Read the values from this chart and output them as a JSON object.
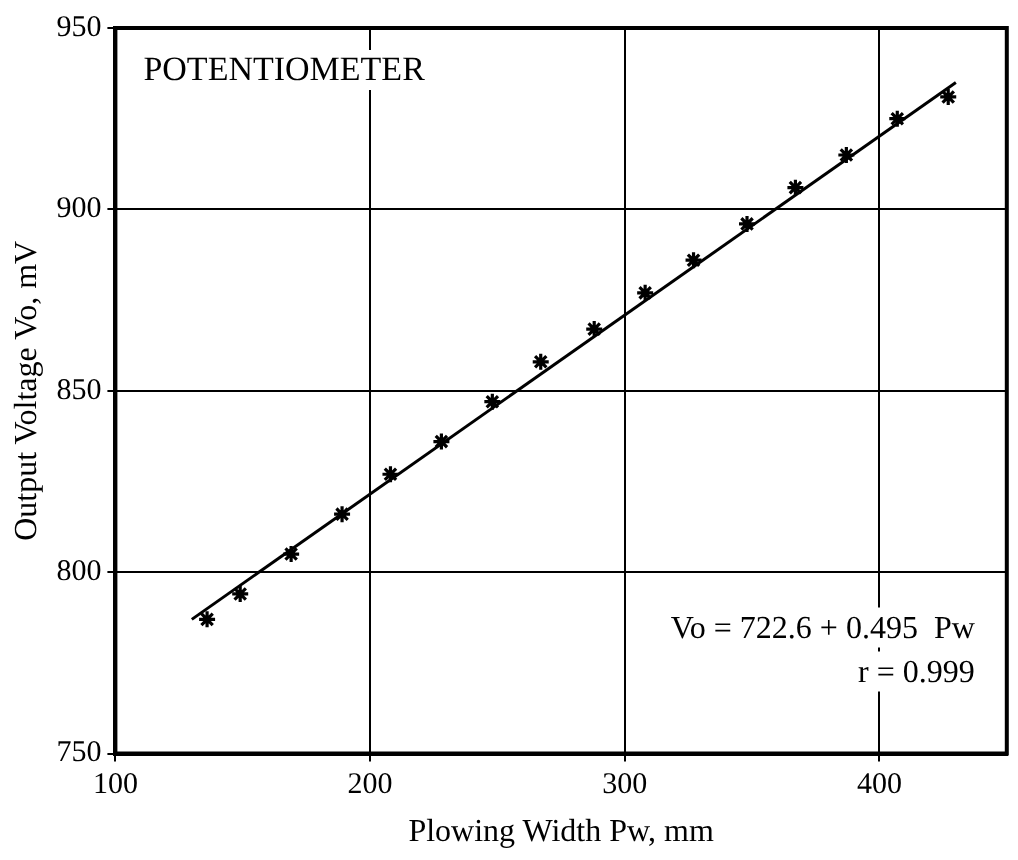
{
  "chart_data": {
    "type": "scatter",
    "xlabel": "Plowing Width Pw, mm",
    "ylabel": "Output Voltage Vo, mV",
    "xlim": [
      100,
      450
    ],
    "xticks": [
      100,
      200,
      300,
      400
    ],
    "ylim": [
      750,
      950
    ],
    "yticks": [
      750,
      800,
      850,
      900,
      950
    ],
    "grid": true,
    "legend": false,
    "marker": "cross",
    "annotations": [
      "POTENTIOMETER",
      "Vo = 722.6 + 0.495  Pw",
      "r = 0.999"
    ],
    "series": [
      {
        "color": "#000000",
        "x": [
          136,
          149,
          169,
          189,
          208,
          228,
          248,
          267,
          288,
          308,
          327,
          348,
          367,
          387,
          407,
          427
        ],
        "values": [
          787,
          794,
          805,
          816,
          827,
          836,
          847,
          858,
          867,
          877,
          886,
          896,
          906,
          915,
          925,
          931
        ]
      },
      {
        "type": "line",
        "marker": "none",
        "color": "#000000",
        "x": [
          130,
          430
        ],
        "values": [
          787,
          935
        ]
      }
    ]
  }
}
